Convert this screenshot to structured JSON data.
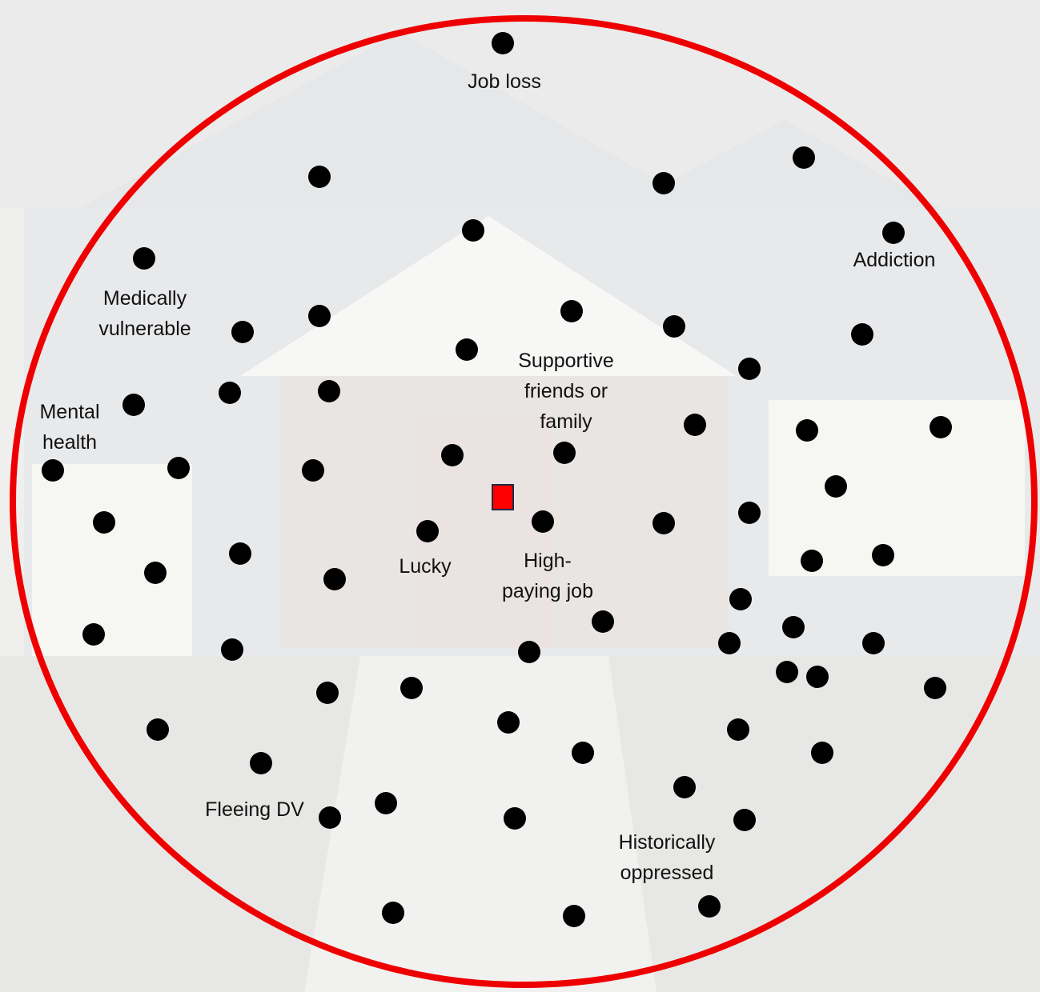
{
  "labels": [
    {
      "lines": [
        "Job loss"
      ]
    },
    {
      "lines": [
        "Addiction"
      ]
    },
    {
      "lines": [
        "Medically",
        "vulnerable"
      ]
    },
    {
      "lines": [
        "Mental",
        "health"
      ]
    },
    {
      "lines": [
        "Supportive",
        "friends or",
        "family"
      ]
    },
    {
      "lines": [
        "Lucky"
      ]
    },
    {
      "lines": [
        "High-",
        "paying job"
      ]
    },
    {
      "lines": [
        "Fleeing DV"
      ]
    },
    {
      "lines": [
        "Historically",
        "oppressed"
      ]
    }
  ]
}
